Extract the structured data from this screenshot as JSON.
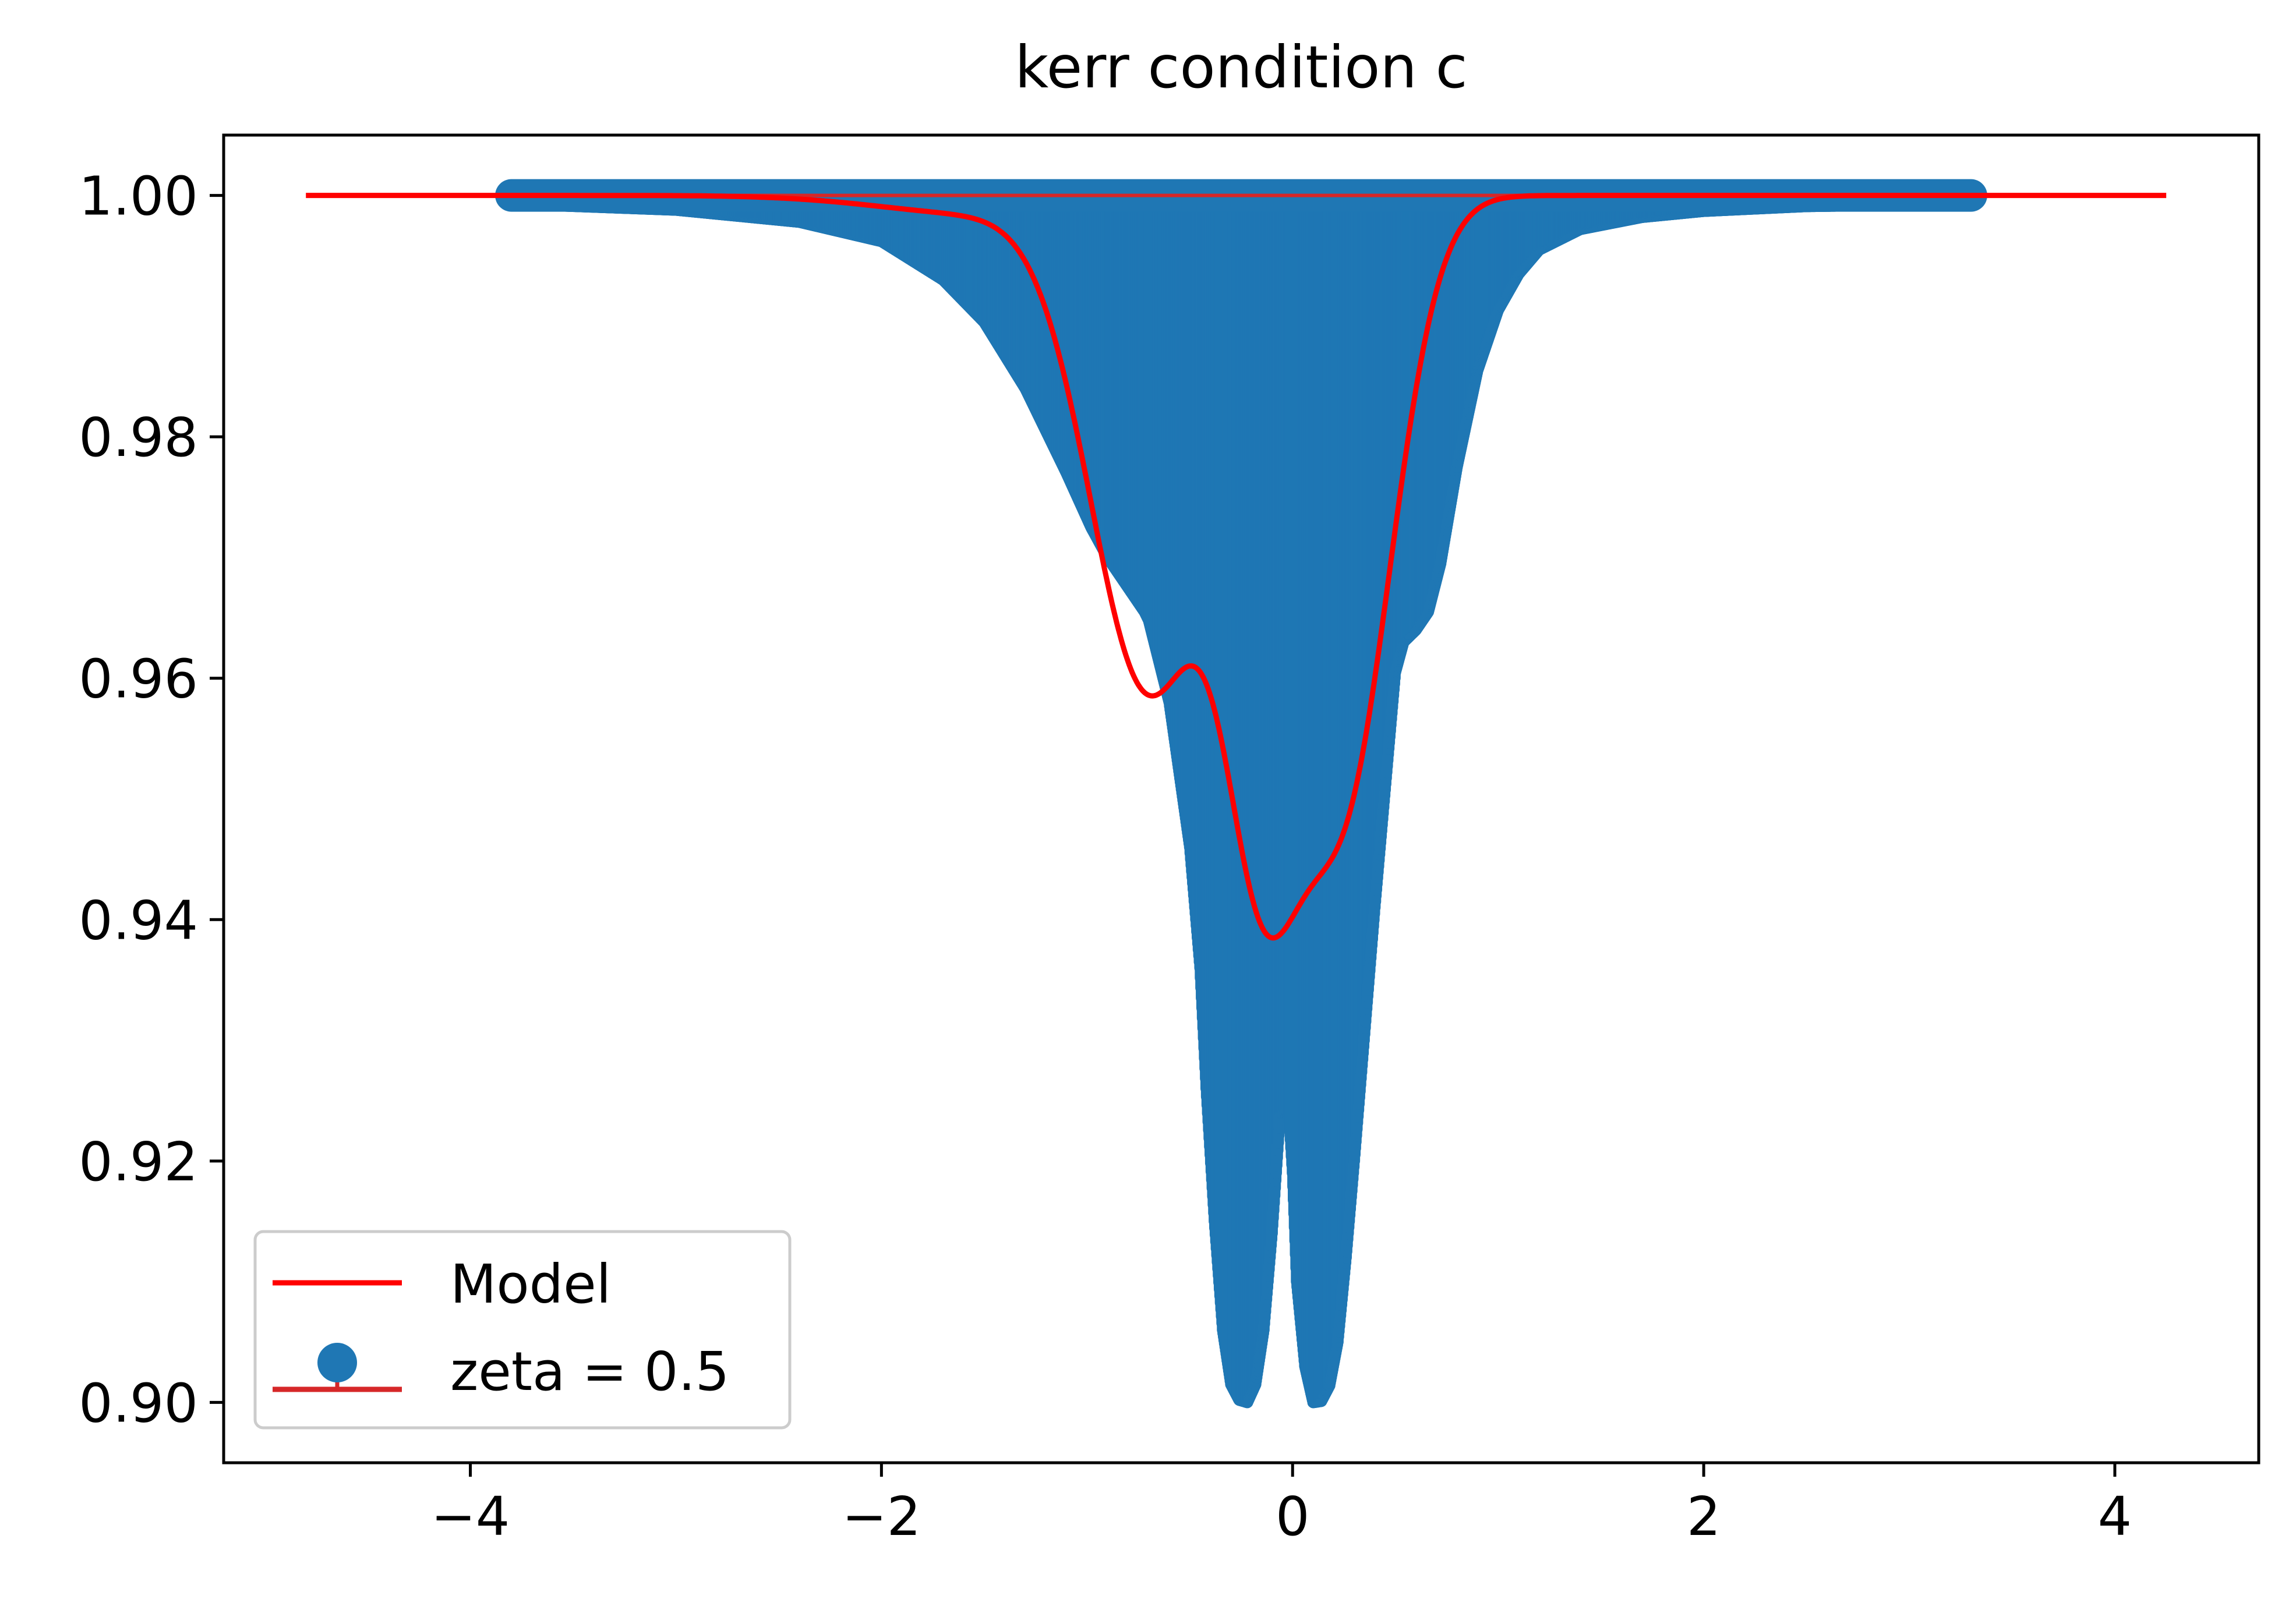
{
  "chart_data": {
    "type": "scatter",
    "title": "kerr condition c",
    "xlabel": "",
    "ylabel": "",
    "xlim": [
      -5.2,
      4.7
    ],
    "ylim": [
      0.895,
      1.005
    ],
    "xticks": [
      {
        "value": -4,
        "label": "−4"
      },
      {
        "value": -2,
        "label": "−2"
      },
      {
        "value": 0,
        "label": "0"
      },
      {
        "value": 2,
        "label": "2"
      },
      {
        "value": 4,
        "label": "4"
      }
    ],
    "yticks": [
      {
        "value": 0.9,
        "label": "0.90"
      },
      {
        "value": 0.92,
        "label": "0.92"
      },
      {
        "value": 0.94,
        "label": "0.94"
      },
      {
        "value": 0.96,
        "label": "0.96"
      },
      {
        "value": 0.98,
        "label": "0.98"
      },
      {
        "value": 1.0,
        "label": "1.00"
      }
    ],
    "grid": false,
    "legend_position": "lower-left",
    "legend": [
      {
        "label": "Model",
        "kind": "line",
        "color": "#ff0000"
      },
      {
        "label": "zeta = 0.5",
        "kind": "errorbar-marker",
        "color": "#1f77b4",
        "line_color": "#d62728"
      }
    ],
    "series": [
      {
        "name": "zeta = 0.5",
        "kind": "scatter-errorbar",
        "color": "#1f77b4",
        "errorbar_color": "#d62728",
        "x_range": [
          -3.8,
          3.3
        ],
        "x_step": 0.0025,
        "upper_y": 1.0,
        "lower_envelope": {
          "x": [
            -3.8,
            -3.0,
            -2.4,
            -2.0,
            -1.7,
            -1.5,
            -1.3,
            -1.1,
            -0.98,
            -0.9,
            -0.8,
            -0.72,
            -0.7,
            -0.6,
            -0.5,
            -0.45,
            -0.42,
            -0.38,
            -0.34,
            -0.3,
            -0.26,
            -0.22,
            -0.18,
            -0.14,
            -0.1,
            -0.06,
            -0.02,
            0.0,
            0.02,
            0.06,
            0.1,
            0.14,
            0.18,
            0.22,
            0.26,
            0.3,
            0.4,
            0.5,
            0.54,
            0.6,
            0.66,
            0.72,
            0.8,
            0.9,
            1.0,
            1.1,
            1.2,
            1.4,
            1.7,
            2.0,
            2.5,
            3.3
          ],
          "y": [
            0.9993,
            0.9988,
            0.9978,
            0.9962,
            0.993,
            0.9895,
            0.984,
            0.977,
            0.9725,
            0.97,
            0.9675,
            0.9655,
            0.9648,
            0.958,
            0.946,
            0.936,
            0.926,
            0.915,
            0.906,
            0.9015,
            0.9002,
            0.9,
            0.9015,
            0.906,
            0.914,
            0.924,
            0.9245,
            0.919,
            0.91,
            0.903,
            0.9,
            0.9001,
            0.9014,
            0.905,
            0.912,
            0.92,
            0.941,
            0.9605,
            0.963,
            0.964,
            0.9655,
            0.9695,
            0.9775,
            0.9855,
            0.9905,
            0.9935,
            0.9955,
            0.9972,
            0.9982,
            0.9987,
            0.9991,
            0.9993
          ]
        }
      },
      {
        "name": "Model",
        "kind": "line",
        "color": "#ff0000",
        "x_range": [
          -4.8,
          4.25
        ],
        "baseline": 1.0,
        "components": [
          {
            "depth": 0.0405,
            "center": -0.7,
            "sigma": 0.28
          },
          {
            "depth": 0.0495,
            "center": 0.24,
            "sigma": 0.24
          },
          {
            "depth": 0.0415,
            "center": -0.16,
            "sigma": 0.18
          },
          {
            "depth": 0.00152,
            "center": -1.5,
            "sigma": 0.5
          }
        ]
      }
    ]
  }
}
